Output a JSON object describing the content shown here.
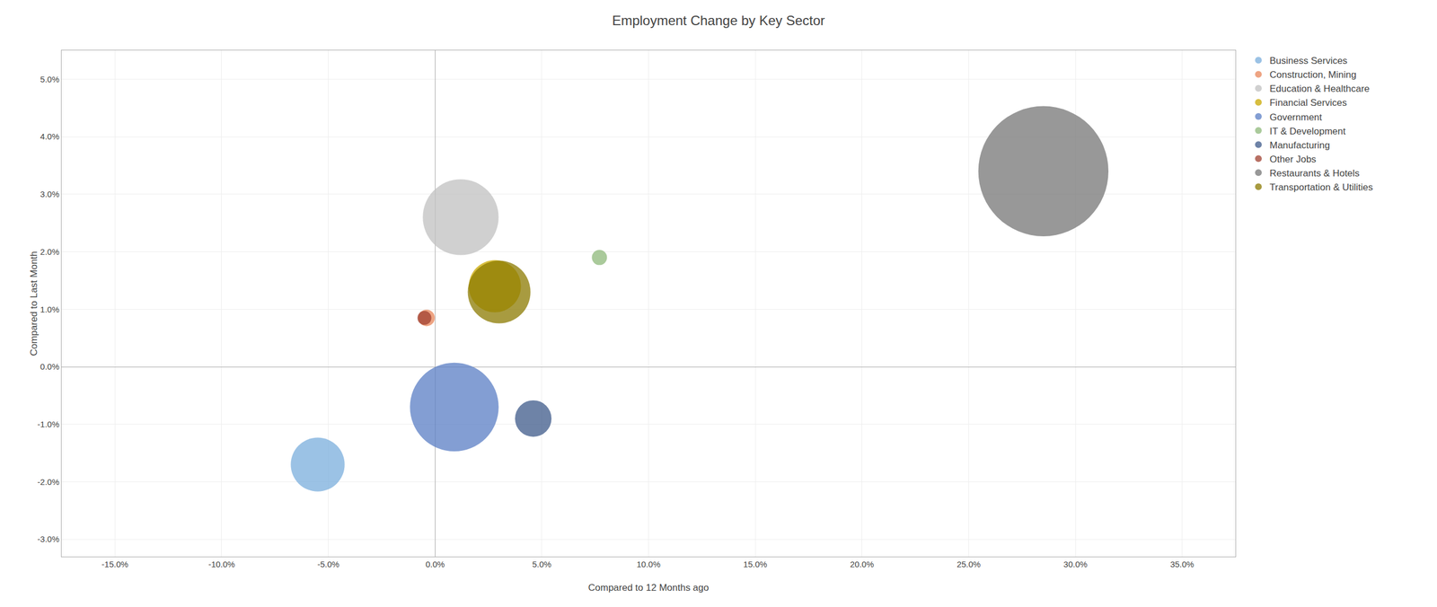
{
  "chart_data": {
    "type": "bubble",
    "title": "Employment Change by Key Sector",
    "x_label": "Compared to 12 Months ago",
    "y_label": "Compared to Last Month",
    "xlim": [
      -0.175,
      0.375
    ],
    "ylim": [
      -0.033,
      0.055
    ],
    "xticks": [
      {
        "value": -0.15,
        "label": "-15.0%"
      },
      {
        "value": -0.1,
        "label": "-10.0%"
      },
      {
        "value": -0.05,
        "label": "-5.0%"
      },
      {
        "value": 0.0,
        "label": "0.0%"
      },
      {
        "value": 0.05,
        "label": "5.0%"
      },
      {
        "value": 0.1,
        "label": "10.0%"
      },
      {
        "value": 0.15,
        "label": "15.0%"
      },
      {
        "value": 0.2,
        "label": "20.0%"
      },
      {
        "value": 0.25,
        "label": "25.0%"
      },
      {
        "value": 0.3,
        "label": "30.0%"
      },
      {
        "value": 0.35,
        "label": "35.0%"
      }
    ],
    "yticks": [
      {
        "value": -0.03,
        "label": "-3.0%"
      },
      {
        "value": -0.02,
        "label": "-2.0%"
      },
      {
        "value": -0.01,
        "label": "-1.0%"
      },
      {
        "value": 0.0,
        "label": "0.0%"
      },
      {
        "value": 0.01,
        "label": "1.0%"
      },
      {
        "value": 0.02,
        "label": "2.0%"
      },
      {
        "value": 0.03,
        "label": "3.0%"
      },
      {
        "value": 0.04,
        "label": "4.0%"
      },
      {
        "value": 0.05,
        "label": "5.0%"
      }
    ],
    "grid": true,
    "legend": "right",
    "series": [
      {
        "name": "Business Services",
        "x": [
          -0.055
        ],
        "y": [
          -0.017
        ],
        "size": [
          4800
        ],
        "color": "#7aaedc"
      },
      {
        "name": "Construction, Mining",
        "x": [
          -0.004
        ],
        "y": [
          0.0085
        ],
        "size": [
          450
        ],
        "color": "#e8855a"
      },
      {
        "name": "Education & Healthcare",
        "x": [
          0.012
        ],
        "y": [
          0.026
        ],
        "size": [
          9500
        ],
        "color": "#c0c0c0"
      },
      {
        "name": "Financial Services",
        "x": [
          0.028
        ],
        "y": [
          0.014
        ],
        "size": [
          4500
        ],
        "color": "#c9a800"
      },
      {
        "name": "Government",
        "x": [
          0.009
        ],
        "y": [
          -0.007
        ],
        "size": [
          13000
        ],
        "color": "#5a7ec4"
      },
      {
        "name": "IT & Development",
        "x": [
          0.077
        ],
        "y": [
          0.019
        ],
        "size": [
          380
        ],
        "color": "#8db87a"
      },
      {
        "name": "Manufacturing",
        "x": [
          0.046
        ],
        "y": [
          -0.009
        ],
        "size": [
          2200
        ],
        "color": "#3d5a8a"
      },
      {
        "name": "Other Jobs",
        "x": [
          -0.005
        ],
        "y": [
          0.0085
        ],
        "size": [
          320
        ],
        "color": "#a04030"
      },
      {
        "name": "Restaurants & Hotels",
        "x": [
          0.285
        ],
        "y": [
          0.034
        ],
        "size": [
          28000
        ],
        "color": "#757575"
      },
      {
        "name": "Transportation & Utilities",
        "x": [
          0.03
        ],
        "y": [
          0.013
        ],
        "size": [
          6500
        ],
        "color": "#8b7a00"
      }
    ]
  }
}
